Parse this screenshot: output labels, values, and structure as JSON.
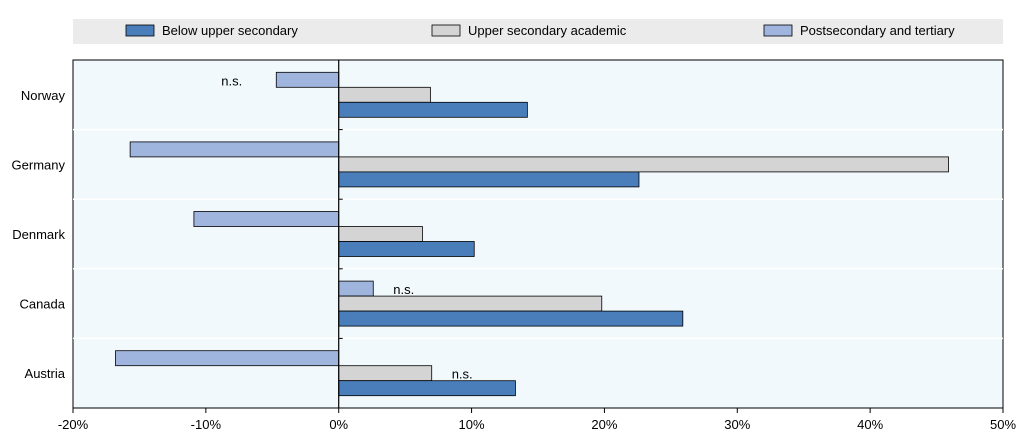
{
  "chart_data": {
    "type": "bar",
    "orientation": "horizontal",
    "categories": [
      "Norway",
      "Germany",
      "Denmark",
      "Canada",
      "Austria"
    ],
    "series": [
      {
        "name": "Below upper secondary",
        "color": "#4a7ebb",
        "values": [
          14.2,
          22.6,
          10.2,
          25.9,
          13.3
        ]
      },
      {
        "name": "Upper secondary academic",
        "color": "#d4d4d4",
        "values": [
          6.9,
          45.9,
          6.3,
          19.8,
          7.0
        ]
      },
      {
        "name": "Postsecondary and tertiary",
        "color": "#9fb5de",
        "values": [
          -4.7,
          -15.7,
          -10.9,
          2.6,
          -16.8
        ]
      }
    ],
    "annotations": [
      {
        "category": "Norway",
        "series": "Postsecondary and tertiary",
        "text": "n.s."
      },
      {
        "category": "Canada",
        "series": "Postsecondary and tertiary",
        "text": "n.s."
      },
      {
        "category": "Austria",
        "series": "Upper secondary academic",
        "text": "n.s."
      }
    ],
    "xlim": [
      -20,
      50
    ],
    "xticks": [
      -20,
      -10,
      0,
      10,
      20,
      30,
      40,
      50
    ],
    "tick_format": "percent",
    "plot_background": "#f2f9fc",
    "legend_background": "#ebebeb",
    "legend_position": "top",
    "grid": false
  }
}
